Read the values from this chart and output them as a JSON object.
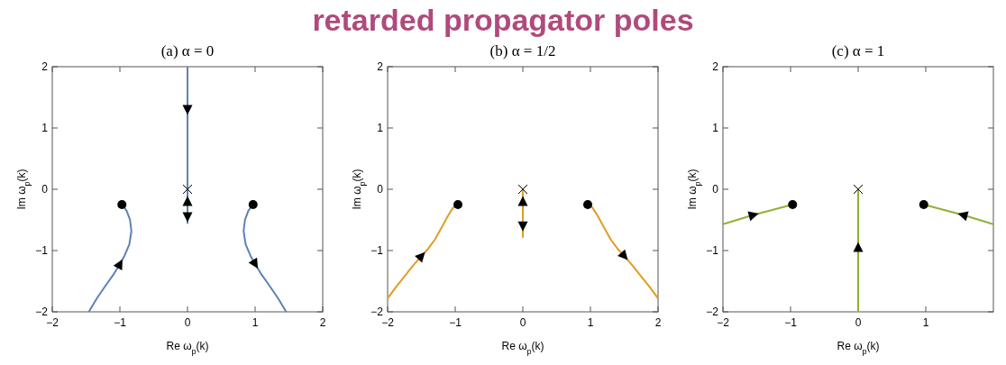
{
  "chart_data": [
    {
      "type": "other",
      "title": "retarded propagator poles"
    },
    {
      "type": "line",
      "title": "(a) α = 0",
      "xlabel": "Re ω$_{p}$(k)",
      "ylabel": "Im ω$_{p}$(k)",
      "xlim": [
        -2,
        2
      ],
      "ylim": [
        -2,
        2
      ],
      "xticks": [
        -2,
        -1,
        0,
        1,
        2
      ],
      "yticks": [
        -2,
        -1,
        0,
        1,
        2
      ],
      "grid": false,
      "line_style": "solid",
      "series": [
        {
          "color": "#5e81b5",
          "x": [
            0,
            0,
            0
          ],
          "values": [
            2,
            1.3,
            0
          ]
        },
        {
          "color": "#5e81b5",
          "x": [
            0,
            0,
            0,
            0
          ],
          "values": [
            0,
            -0.2,
            -0.45,
            -0.55
          ]
        },
        {
          "color": "#5e81b5",
          "x": [
            -0.97,
            -0.9,
            -0.85,
            -0.83,
            -0.86,
            -0.93,
            -1.0,
            -1.1,
            -1.21,
            -1.34,
            -1.46
          ],
          "values": [
            -0.25,
            -0.35,
            -0.5,
            -0.68,
            -0.9,
            -1.08,
            -1.22,
            -1.4,
            -1.57,
            -1.78,
            -2.0
          ]
        },
        {
          "color": "#5e81b5",
          "x": [
            0.97,
            0.9,
            0.85,
            0.83,
            0.86,
            0.93,
            1.0,
            1.1,
            1.21,
            1.34,
            1.46
          ],
          "values": [
            -0.25,
            -0.35,
            -0.5,
            -0.68,
            -0.9,
            -1.08,
            -1.22,
            -1.4,
            -1.57,
            -1.78,
            -2.0
          ]
        },
        {
          "type": "scatter",
          "marker": "circle",
          "color": "#000000",
          "x": [
            -0.97,
            0.97
          ],
          "values": [
            -0.25,
            -0.25
          ]
        },
        {
          "type": "scatter",
          "marker": "cross",
          "color": "#000000",
          "x": [
            0
          ],
          "values": [
            0
          ]
        }
      ]
    },
    {
      "type": "line",
      "title": "(b) α = 1/2",
      "xlabel": "Re ω$_{p}$(k)",
      "ylabel": "Im ω$_{p}$(k)",
      "xlim": [
        -2,
        2
      ],
      "ylim": [
        -2,
        2
      ],
      "xticks": [
        -2,
        -1,
        0,
        1,
        2
      ],
      "yticks": [
        -2,
        -1,
        0,
        1,
        2
      ],
      "grid": false,
      "line_style": "solid",
      "series": [
        {
          "color": "#e19c24",
          "x": [
            0,
            0,
            0,
            0
          ],
          "values": [
            0,
            -0.2,
            -0.6,
            -0.78
          ]
        },
        {
          "color": "#e19c24",
          "x": [
            -0.96,
            -1.03,
            -1.1,
            -1.2,
            -1.3,
            -1.4,
            -1.5,
            -1.62,
            -1.75,
            -1.88,
            -2.0
          ],
          "values": [
            -0.25,
            -0.3,
            -0.42,
            -0.62,
            -0.82,
            -0.97,
            -1.09,
            -1.24,
            -1.42,
            -1.6,
            -1.78
          ]
        },
        {
          "color": "#e19c24",
          "x": [
            0.96,
            1.03,
            1.1,
            1.2,
            1.3,
            1.4,
            1.5,
            1.62,
            1.75,
            1.88,
            2.0
          ],
          "values": [
            -0.25,
            -0.3,
            -0.42,
            -0.62,
            -0.82,
            -0.97,
            -1.09,
            -1.24,
            -1.42,
            -1.6,
            -1.78
          ]
        },
        {
          "type": "scatter",
          "marker": "circle",
          "color": "#000000",
          "x": [
            -0.96,
            0.96
          ],
          "values": [
            -0.25,
            -0.25
          ]
        },
        {
          "type": "scatter",
          "marker": "cross",
          "color": "#000000",
          "x": [
            0
          ],
          "values": [
            0
          ]
        }
      ]
    },
    {
      "type": "line",
      "title": "(c) α = 1",
      "xlabel": "Re ω$_{p}$(k)",
      "ylabel": "Im ω$_{p}$(k)",
      "xlim": [
        -2,
        2
      ],
      "ylim": [
        -2,
        2
      ],
      "xticks": [
        -2,
        -1,
        0,
        1
      ],
      "yticks": [
        -2,
        -1,
        0,
        1,
        2
      ],
      "grid": false,
      "line_style": "solid",
      "series": [
        {
          "color": "#8fb032",
          "x": [
            0,
            0,
            0
          ],
          "values": [
            0,
            -0.95,
            -2
          ]
        },
        {
          "color": "#8fb032",
          "x": [
            -0.97,
            -1.55,
            -2
          ],
          "values": [
            -0.25,
            -0.42,
            -0.57
          ]
        },
        {
          "color": "#8fb032",
          "x": [
            0.97,
            1.55,
            2
          ],
          "values": [
            -0.25,
            -0.42,
            -0.57
          ]
        },
        {
          "type": "scatter",
          "marker": "circle",
          "color": "#000000",
          "x": [
            -0.97,
            0.97
          ],
          "values": [
            -0.25,
            -0.25
          ]
        },
        {
          "type": "scatter",
          "marker": "cross",
          "color": "#000000",
          "x": [
            0
          ],
          "values": [
            0
          ]
        }
      ]
    }
  ]
}
